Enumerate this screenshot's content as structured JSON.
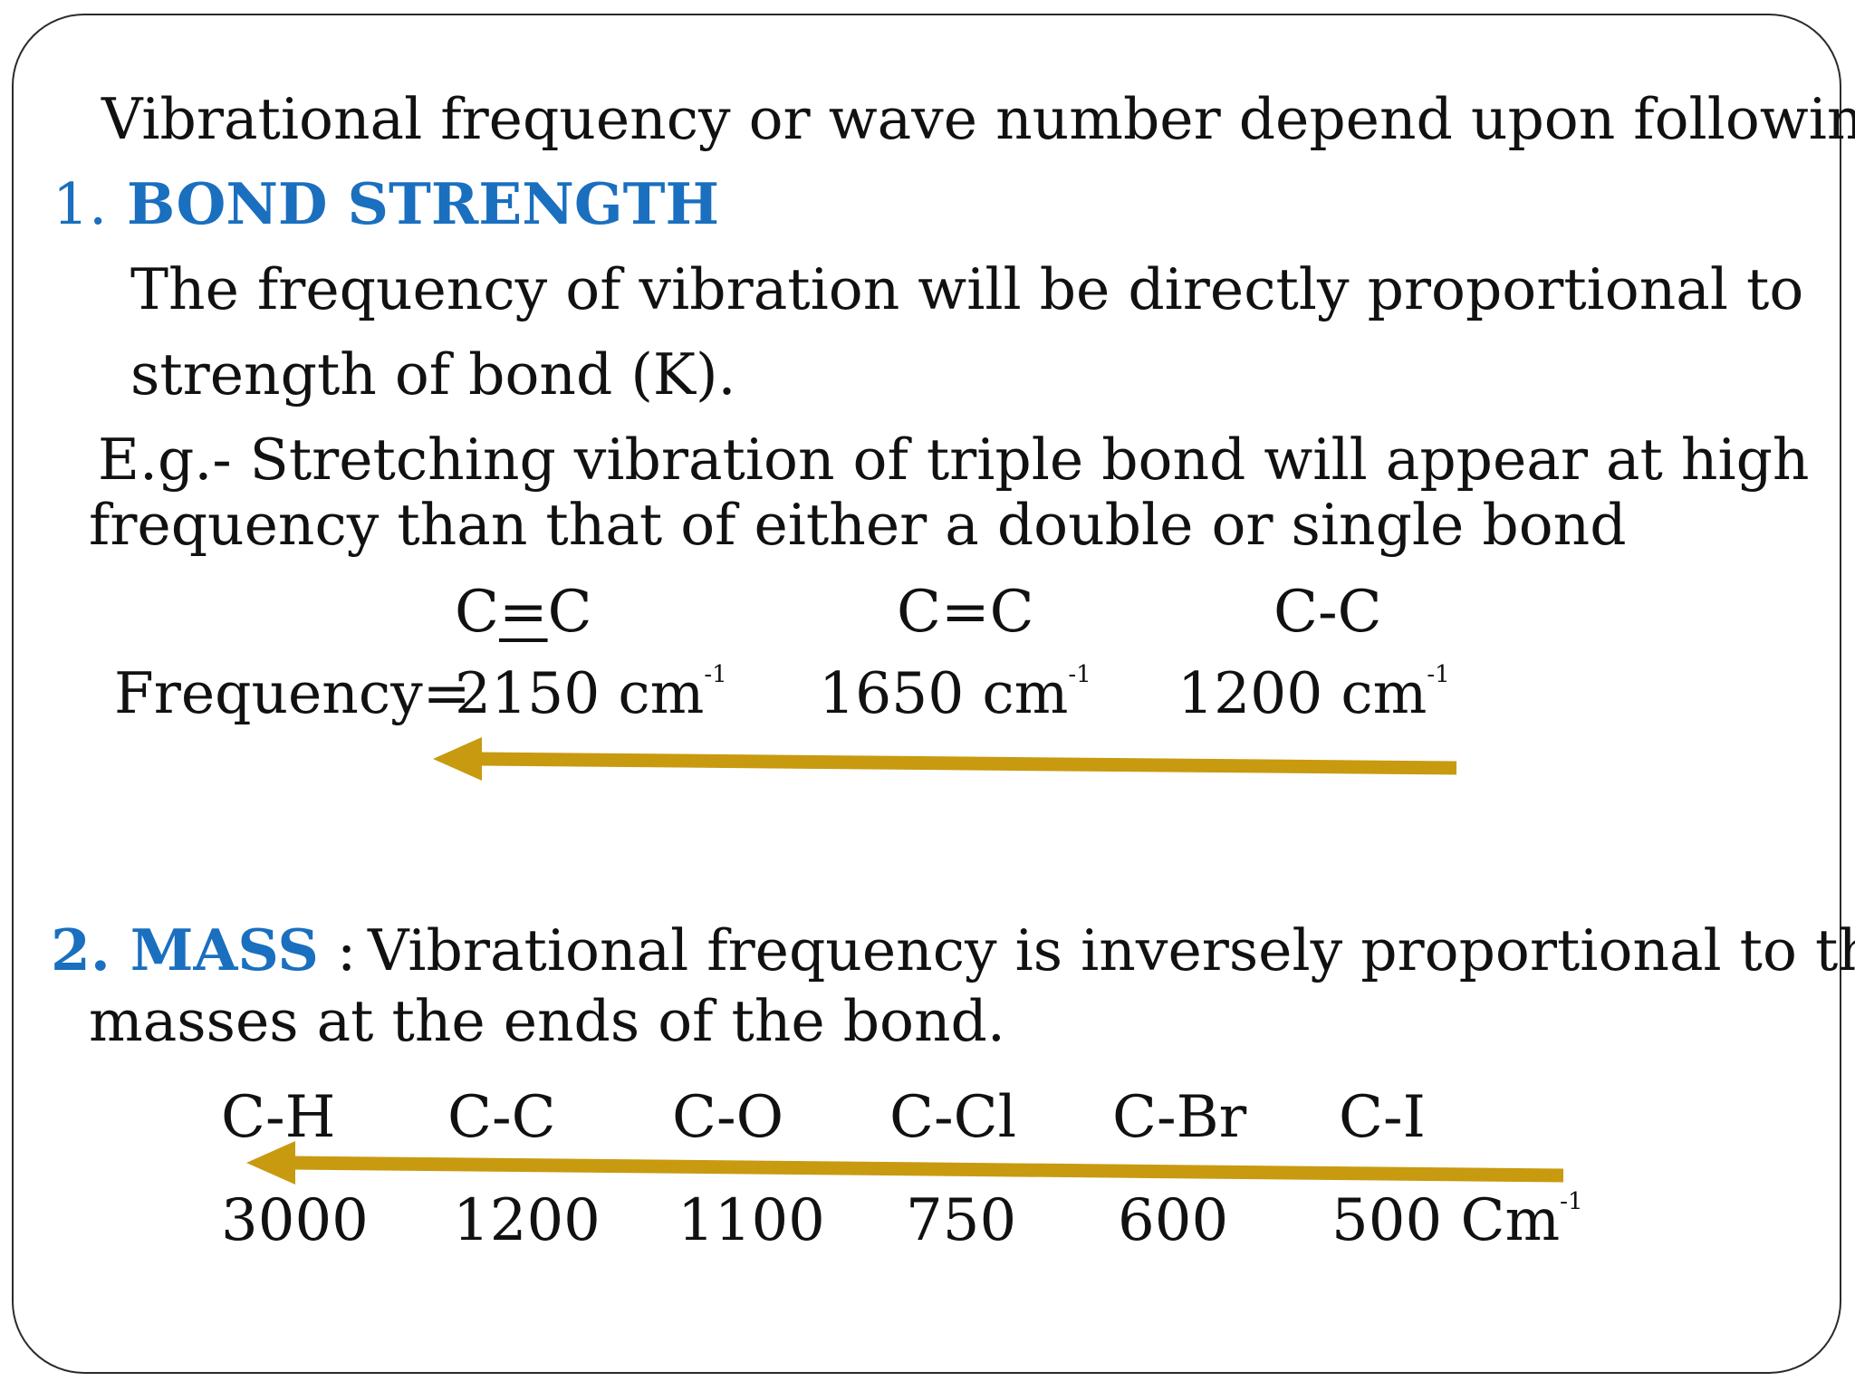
{
  "intro": "Vibrational frequency or wave number depend upon following:",
  "section1": {
    "number": "1.",
    "title": "BOND STRENGTH",
    "line1": "The frequency of vibration will be directly proportional to",
    "line2": "strength of bond (K).",
    "eg_line1": "E.g.-  Stretching vibration of triple bond will appear at high",
    "eg_line2": "frequency than that of either a double or single bond",
    "bonds": [
      {
        "symbol_pre": "C",
        "symbol_mid": "=",
        "symbol_post": "C"
      },
      {
        "symbol": "C=C"
      },
      {
        "symbol": "C-C"
      }
    ],
    "frequency_label": "Frequency=",
    "frequencies": [
      "2150 cm",
      "1650 cm",
      "1200 cm"
    ],
    "unit_sup": "-1"
  },
  "section2": {
    "title": "2. MASS",
    "colon": " :",
    "line1": "Vibrational frequency is inversely proportional to the",
    "line2": "masses at the ends of the bond.",
    "bonds": [
      "C-H",
      "C-C",
      "C-O",
      "C-Cl",
      "C-Br",
      "C-I"
    ],
    "values": [
      "3000",
      "1200",
      "1100",
      "750",
      "600",
      "500  Cm"
    ],
    "unit_sup": "-1"
  },
  "colors": {
    "heading": "#1a6fbf",
    "arrow": "#c89a10",
    "border": "#2b2b2b"
  }
}
